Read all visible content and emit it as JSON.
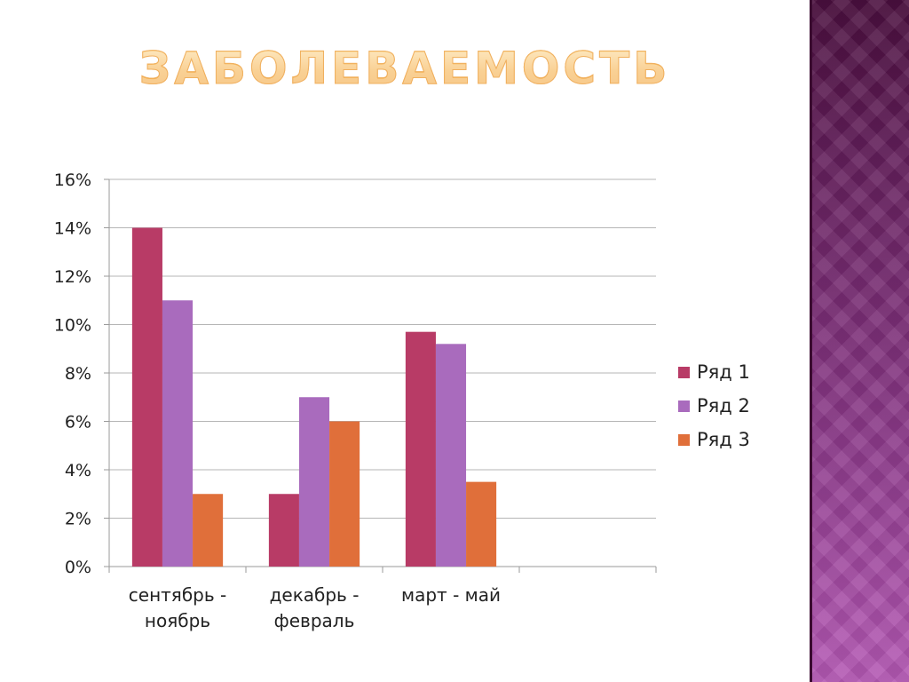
{
  "slide": {
    "title": "ЗАБОЛЕВАЕМОСТЬ",
    "title_gradient": [
      "#fde2a6",
      "#f0a035"
    ],
    "side_panel_color": "#6a2363"
  },
  "chart_data": {
    "type": "bar",
    "title": "",
    "xlabel": "",
    "ylabel": "",
    "categories": [
      "сентябрь - ноябрь",
      "декабрь - февраль",
      "март - май",
      ""
    ],
    "category_labels": [
      [
        "сентябрь -",
        "ноябрь"
      ],
      [
        "декабрь -",
        "февраль"
      ],
      [
        "март - май"
      ],
      []
    ],
    "series": [
      {
        "name": "Ряд 1",
        "color": "#b83b66",
        "values": [
          0.14,
          0.03,
          0.097,
          null
        ]
      },
      {
        "name": "Ряд 2",
        "color": "#a96bbd",
        "values": [
          0.11,
          0.07,
          0.092,
          null
        ]
      },
      {
        "name": "Ряд 3",
        "color": "#e06f3a",
        "values": [
          0.03,
          0.06,
          0.035,
          null
        ]
      }
    ],
    "ylim": [
      0,
      0.16
    ],
    "yticks": [
      0,
      0.02,
      0.04,
      0.06,
      0.08,
      0.1,
      0.12,
      0.14,
      0.16
    ],
    "ytick_labels": [
      "0%",
      "2%",
      "4%",
      "6%",
      "8%",
      "10%",
      "12%",
      "14%",
      "16%"
    ],
    "grid": true,
    "legend_position": "right"
  }
}
